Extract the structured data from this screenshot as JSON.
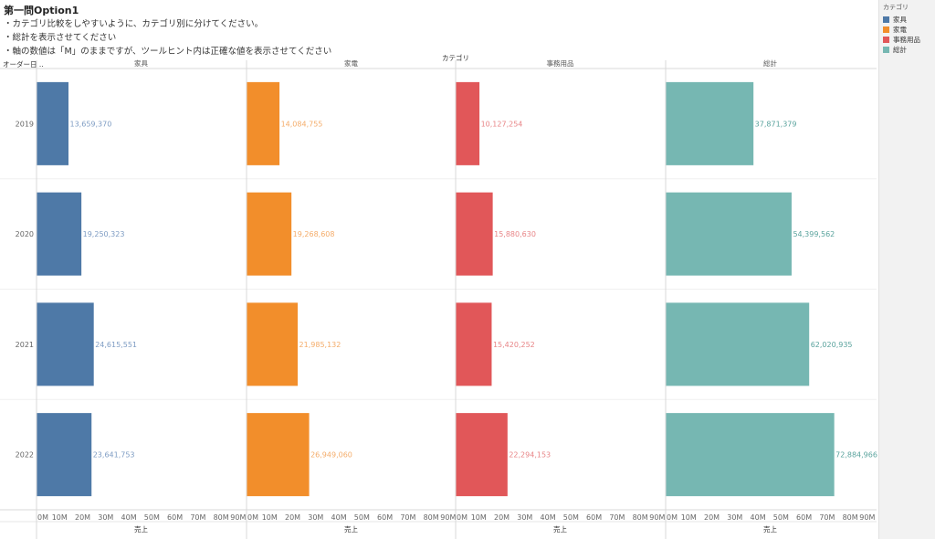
{
  "header": {
    "title": "第一問Option1",
    "notes": [
      "・カテゴリ比較をしやすいように、カテゴリ別に分けてください。",
      "・総計を表示させてください",
      "・軸の数値は「M」のままですが、ツールヒント内は正確な値を表示させてください"
    ]
  },
  "legend": {
    "title": "カテゴリ",
    "items": [
      {
        "label": "家具",
        "color": "#4e79a7"
      },
      {
        "label": "家電",
        "color": "#f28e2b"
      },
      {
        "label": "事務用品",
        "color": "#e15759"
      },
      {
        "label": "総計",
        "color": "#76b7b2"
      }
    ]
  },
  "chart_data": {
    "type": "bar",
    "orientation": "horizontal",
    "column_header": "カテゴリ",
    "row_header": "オーダー日 ..",
    "categories": [
      "2019",
      "2020",
      "2021",
      "2022"
    ],
    "series": [
      {
        "name": "家具",
        "color": "#4e79a7",
        "label_color": "#7e9cc3",
        "values": [
          13659370,
          19250323,
          24615551,
          23641753
        ],
        "labels": [
          "13,659,370",
          "19,250,323",
          "24,615,551",
          "23,641,753"
        ]
      },
      {
        "name": "家電",
        "color": "#f28e2b",
        "label_color": "#f4ac6a",
        "values": [
          14084755,
          19268608,
          21985132,
          26949060
        ],
        "labels": [
          "14,084,755",
          "19,268,608",
          "21,985,132",
          "26,949,060"
        ]
      },
      {
        "name": "事務用品",
        "color": "#e15759",
        "label_color": "#e88587",
        "values": [
          10127254,
          15880630,
          15420252,
          22294153
        ],
        "labels": [
          "10,127,254",
          "15,880,630",
          "15,420,252",
          "22,294,153"
        ]
      },
      {
        "name": "総計",
        "color": "#76b7b2",
        "label_color": "#5aa39d",
        "values": [
          37871379,
          54399562,
          62020935,
          72884966
        ],
        "labels": [
          "37,871,379",
          "54,399,562",
          "62,020,935",
          "72,884,966"
        ]
      }
    ],
    "xlabel": "売上",
    "xlim": [
      0,
      90000000
    ],
    "xticks": [
      0,
      10000000,
      20000000,
      30000000,
      40000000,
      50000000,
      60000000,
      70000000,
      80000000,
      90000000
    ],
    "xtick_labels": [
      "0M",
      "10M",
      "20M",
      "30M",
      "40M",
      "50M",
      "60M",
      "70M",
      "80M",
      "90M"
    ],
    "grid": true
  }
}
